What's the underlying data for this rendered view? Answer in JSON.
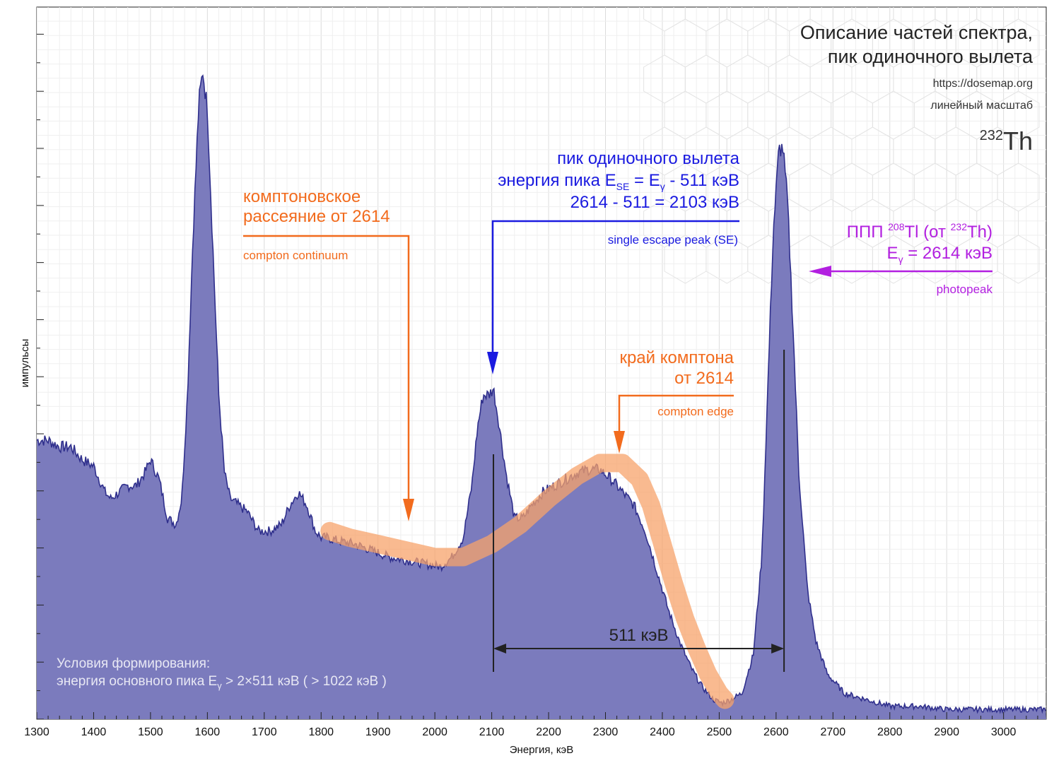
{
  "title": {
    "line1": "Описание частей спектра,",
    "line2": "пик одиночного вылета",
    "url": "https://dosemap.org",
    "scale": "линейный масштаб",
    "isotope_mass": "232",
    "isotope_symbol": "Th"
  },
  "annotations": {
    "compton_scatter": {
      "line1": "комптоновское",
      "line2": "рассеяние от 2614",
      "sub": "compton continuum"
    },
    "single_escape": {
      "line1": "пик одиночного вылета",
      "line2_pre": "энергия пика E",
      "line2_sub_se": "SE",
      "line2_mid": " = E",
      "line2_sub_g": "γ",
      "line2_post": " - 511 кэВ",
      "line3": "2614 - 511 = 2103 кэВ",
      "sub": "single escape peak (SE)"
    },
    "photopeak": {
      "line1_pre": "ППП ",
      "line1_sup1": "208",
      "line1_mid": "Tl (от ",
      "line1_sup2": "232",
      "line1_post": "Th)",
      "line2_pre": "E",
      "line2_sub": "γ",
      "line2_post": " = 2614 кэВ",
      "sub": "photopeak"
    },
    "compton_edge": {
      "line1": "край комптона",
      "line2": "от 2614",
      "sub": "compton edge"
    },
    "distance_label": "511 кэВ",
    "conditions": {
      "line1": "Условия формирования:",
      "line2_pre": "энергия основного пика E",
      "line2_sub": "γ",
      "line2_post": " > 2×511 кэВ ( > 1022 кэВ )"
    }
  },
  "colors": {
    "fill": "#7b7bbd",
    "stroke": "#2f2f8c",
    "orange": "#f26b1d",
    "orange_band": "#f7a36b",
    "blue": "#1a1ae0",
    "magenta": "#b21fe0"
  },
  "chart_data": {
    "type": "area",
    "xlabel": "Энергия, кэВ",
    "ylabel": "импульсы",
    "xlim": [
      1300,
      3075
    ],
    "ylim": [
      0,
      100
    ],
    "y_scale": "linear",
    "grid": true,
    "x_ticks": [
      1300,
      1400,
      1500,
      1600,
      1700,
      1800,
      1900,
      2000,
      2100,
      2200,
      2300,
      2400,
      2500,
      2600,
      2700,
      2800,
      2900,
      3000
    ],
    "x_tick_labels": [
      "1300",
      "1400",
      "1500",
      "1600",
      "1700",
      "1800",
      "1900",
      "2000",
      "2100",
      "2200",
      "2300",
      "2400",
      "2500",
      "2600",
      "2700",
      "2800",
      "2900",
      "3000"
    ],
    "series": [
      {
        "values_x": [
          1300,
          1320,
          1340,
          1360,
          1380,
          1400,
          1420,
          1430,
          1445,
          1460,
          1475,
          1490,
          1500,
          1515,
          1530,
          1545,
          1555,
          1565,
          1575,
          1585,
          1592,
          1600,
          1610,
          1620,
          1630,
          1640,
          1655,
          1670,
          1690,
          1710,
          1730,
          1745,
          1760,
          1775,
          1790,
          1800,
          1810,
          1830,
          1860,
          1890,
          1920,
          1950,
          1980,
          2010,
          2030,
          2050,
          2065,
          2075,
          2085,
          2095,
          2103,
          2112,
          2125,
          2140,
          2155,
          2170,
          2190,
          2220,
          2250,
          2270,
          2290,
          2310,
          2330,
          2350,
          2370,
          2390,
          2410,
          2430,
          2450,
          2470,
          2490,
          2505,
          2520,
          2540,
          2560,
          2575,
          2585,
          2595,
          2605,
          2612,
          2620,
          2630,
          2640,
          2655,
          2670,
          2690,
          2720,
          2760,
          2800,
          2850,
          2900,
          2950,
          3000,
          3040,
          3075
        ],
        "values_y": [
          43,
          43,
          42,
          42,
          40,
          39,
          35,
          34,
          35,
          36,
          36,
          38,
          40,
          37,
          31,
          30,
          34,
          50,
          75,
          95,
          100,
          94,
          72,
          50,
          38,
          34,
          33,
          32,
          29,
          29,
          30,
          33,
          35,
          33,
          29,
          28,
          28,
          27.5,
          27,
          26,
          25,
          24.5,
          24,
          23.5,
          25,
          28,
          36,
          45,
          50,
          50,
          51,
          46,
          38,
          31,
          31,
          33,
          35,
          36.5,
          38,
          38.5,
          38.5,
          37,
          35,
          33,
          29,
          23,
          17,
          12,
          8,
          5,
          3,
          2.5,
          3,
          4,
          10,
          25,
          50,
          75,
          88,
          88,
          80,
          60,
          38,
          20,
          12,
          7,
          4,
          3,
          2,
          2,
          1.5,
          1.5,
          1.5,
          1.5,
          1.5
        ]
      }
    ],
    "peaks": [
      {
        "x": 1592,
        "y": 100
      },
      {
        "x": 2103,
        "y": 51
      },
      {
        "x": 2614,
        "y": 88
      }
    ],
    "compton_band": {
      "x": [
        1815,
        1850,
        1900,
        1950,
        2000,
        2050,
        2100,
        2150,
        2200,
        2250,
        2290,
        2330,
        2360,
        2380,
        2400,
        2420,
        2440,
        2460,
        2480,
        2500,
        2510
      ],
      "y": [
        29,
        28,
        27,
        26,
        25,
        25,
        27,
        30,
        34,
        37.5,
        39.5,
        39.5,
        37,
        33,
        27,
        21,
        15.5,
        11,
        7,
        4,
        3
      ]
    },
    "measurement": {
      "x_from": 2103,
      "x_to": 2614,
      "label": "511 кэВ"
    }
  }
}
